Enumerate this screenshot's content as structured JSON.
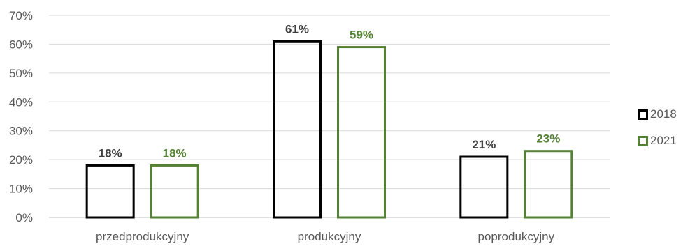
{
  "chart_data": {
    "type": "bar",
    "title": "",
    "xlabel": "",
    "ylabel": "",
    "categories": [
      "przedprodukcyjny",
      "produkcyjny",
      "poprodukcyjny"
    ],
    "series": [
      {
        "name": "2018",
        "values": [
          18,
          61,
          21
        ],
        "labels": [
          "18%",
          "61%",
          "21%"
        ],
        "color": "#000000"
      },
      {
        "name": "2021",
        "values": [
          18,
          59,
          23
        ],
        "labels": [
          "18%",
          "59%",
          "23%"
        ],
        "color": "#548235"
      }
    ],
    "ylim": [
      0,
      70
    ],
    "yticks": [
      "0%",
      "10%",
      "20%",
      "30%",
      "40%",
      "50%",
      "60%",
      "70%"
    ],
    "grid": true,
    "legend": "right",
    "bar_fill": "none"
  }
}
